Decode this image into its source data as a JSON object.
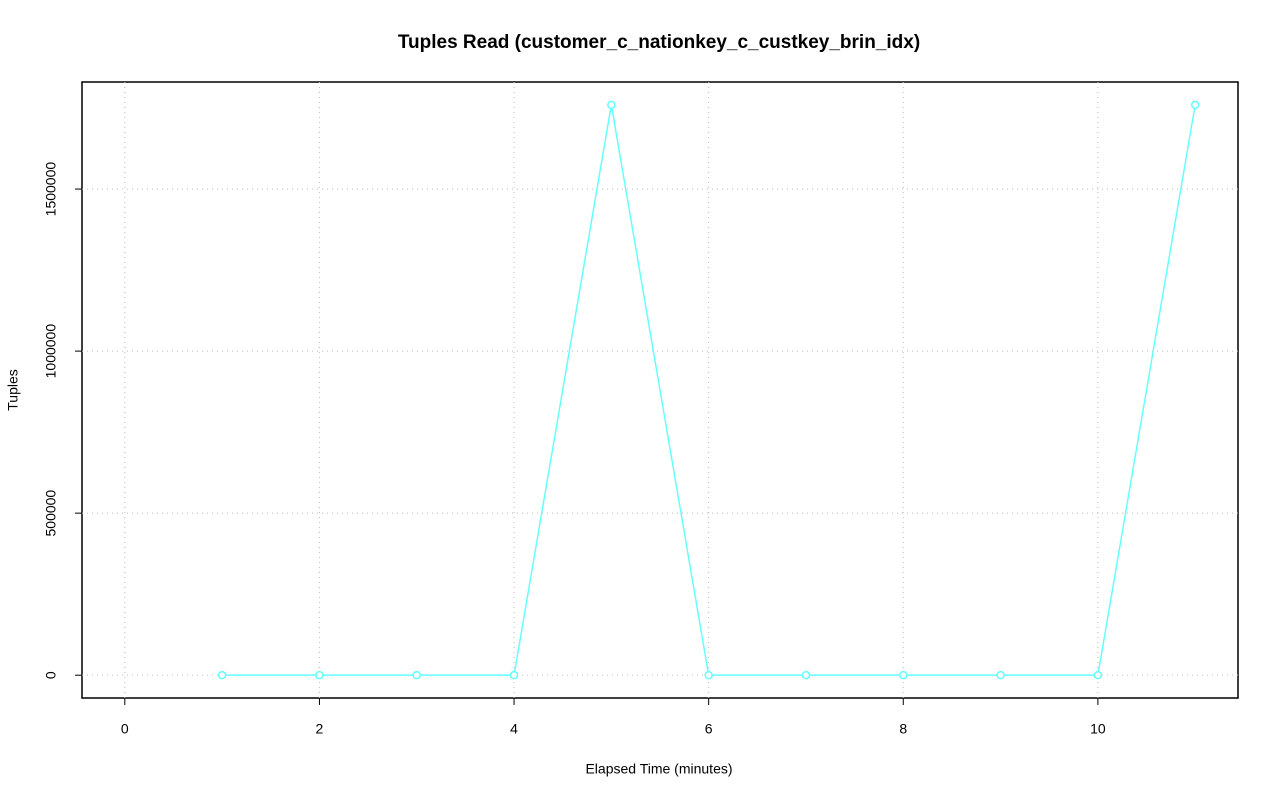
{
  "chart_data": {
    "type": "line",
    "title": "Tuples Read (customer_c_nationkey_c_custkey_brin_idx)",
    "x_label": "Elapsed Time (minutes)",
    "y_label": "Tuples",
    "x": [
      1,
      2,
      3,
      4,
      5,
      6,
      7,
      8,
      9,
      10,
      11
    ],
    "series": [
      {
        "name": "Tuples",
        "color": "#66ffff",
        "values": [
          0,
          0,
          0,
          0,
          1760000,
          0,
          0,
          0,
          0,
          0,
          1760000
        ]
      }
    ],
    "xlim": [
      -0.44,
      11.44
    ],
    "xticks": [
      0,
      2,
      4,
      6,
      8,
      10
    ],
    "ylim": [
      -70400,
      1830400
    ],
    "yticks": [
      0,
      500000,
      1000000,
      1500000
    ],
    "grid": true
  }
}
